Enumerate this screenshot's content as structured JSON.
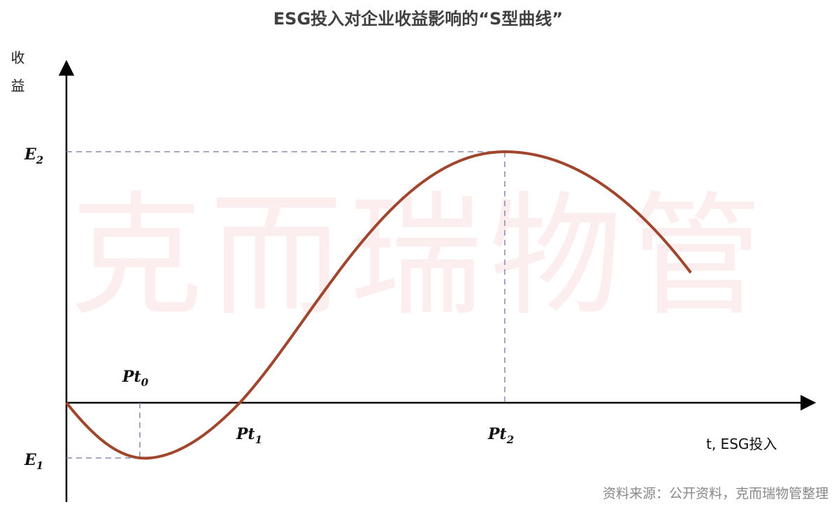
{
  "title": "ESG投入对企业收益影响的“S型曲线”",
  "y_axis_label": "收益",
  "x_axis_label": "t, ESG投入",
  "levels": {
    "E2": {
      "base": "E",
      "sub": "2"
    },
    "E1": {
      "base": "E",
      "sub": "1"
    }
  },
  "points": [
    {
      "base": "Pt",
      "sub": "0"
    },
    {
      "base": "Pt",
      "sub": "1"
    },
    {
      "base": "Pt",
      "sub": "2"
    }
  ],
  "watermark": "克而瑞物管",
  "source": "资料来源：公开资料，克而瑞物管整理"
}
